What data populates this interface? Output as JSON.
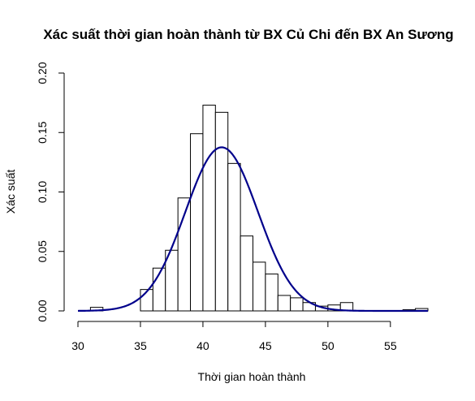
{
  "chart_data": {
    "type": "bar",
    "subtype": "histogram-with-density-curve",
    "title": "Xác suất thời gian hoàn thành từ BX Củ Chi đến BX An Sương",
    "xlabel": "Thời gian hoàn thành",
    "ylabel": "Xác suất",
    "xlim": [
      30,
      58
    ],
    "ylim": [
      0,
      0.2
    ],
    "x_ticks": [
      30,
      35,
      40,
      45,
      50,
      55
    ],
    "y_ticks": [
      0.0,
      0.05,
      0.1,
      0.15,
      0.2
    ],
    "x_tick_labels": [
      "30",
      "35",
      "40",
      "45",
      "50",
      "55"
    ],
    "y_tick_labels": [
      "0.00",
      "0.05",
      "0.10",
      "0.15",
      "0.20"
    ],
    "bin_width": 1,
    "bins": [
      {
        "start": 31,
        "end": 32,
        "value": 0.003
      },
      {
        "start": 35,
        "end": 36,
        "value": 0.018
      },
      {
        "start": 36,
        "end": 37,
        "value": 0.036
      },
      {
        "start": 37,
        "end": 38,
        "value": 0.051
      },
      {
        "start": 38,
        "end": 39,
        "value": 0.095
      },
      {
        "start": 39,
        "end": 40,
        "value": 0.149
      },
      {
        "start": 40,
        "end": 41,
        "value": 0.173
      },
      {
        "start": 41,
        "end": 42,
        "value": 0.167
      },
      {
        "start": 42,
        "end": 43,
        "value": 0.124
      },
      {
        "start": 43,
        "end": 44,
        "value": 0.063
      },
      {
        "start": 44,
        "end": 45,
        "value": 0.041
      },
      {
        "start": 45,
        "end": 46,
        "value": 0.031
      },
      {
        "start": 46,
        "end": 47,
        "value": 0.013
      },
      {
        "start": 47,
        "end": 48,
        "value": 0.011
      },
      {
        "start": 48,
        "end": 49,
        "value": 0.007
      },
      {
        "start": 49,
        "end": 50,
        "value": 0.004
      },
      {
        "start": 50,
        "end": 51,
        "value": 0.005
      },
      {
        "start": 51,
        "end": 52,
        "value": 0.007
      },
      {
        "start": 56,
        "end": 57,
        "value": 0.001
      },
      {
        "start": 57,
        "end": 58,
        "value": 0.002
      }
    ],
    "density_curve": {
      "distribution": "normal",
      "mean": 41.5,
      "sd": 2.9,
      "x_range": [
        30,
        58
      ],
      "color": "#00008B"
    },
    "bar_fill": "#ffffff",
    "bar_stroke": "#000000",
    "grid": false,
    "legend": "none"
  }
}
